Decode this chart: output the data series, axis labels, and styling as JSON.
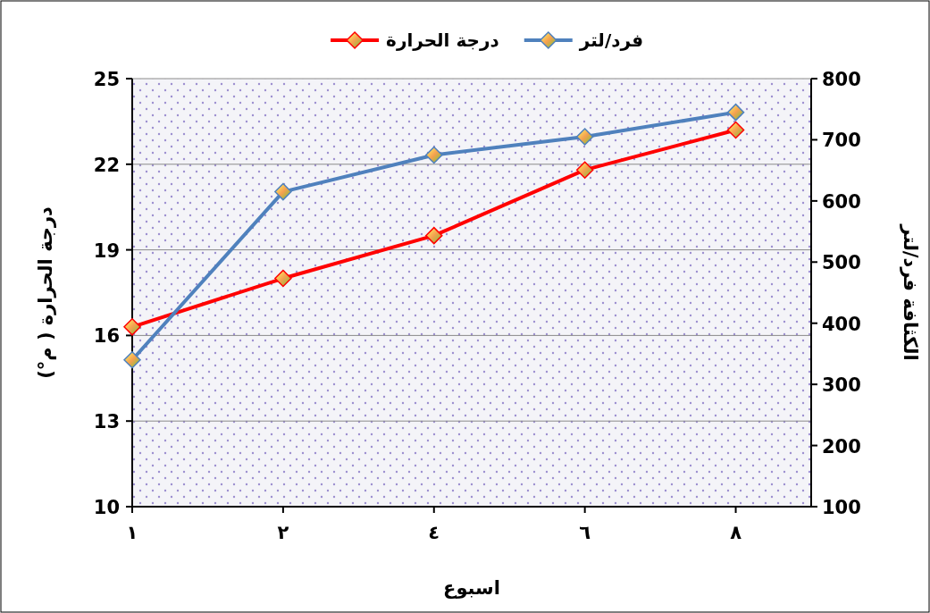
{
  "chart_data": {
    "type": "line",
    "xlabel": "اسبوع",
    "ylabel": "درجة الحرارة ( م°)",
    "y2label": "الكثافة فرد/لتر",
    "categories": [
      "١",
      "٢",
      "٤",
      "٦",
      "٨"
    ],
    "series": [
      {
        "name": "درجة الحرارة",
        "color": "#ff0000",
        "values": [
          16.3,
          18.0,
          19.5,
          21.8,
          23.2
        ]
      },
      {
        "name": "فرد/لتر",
        "color": "#4f81bd",
        "axis": "y2",
        "values": [
          340,
          615,
          675,
          705,
          745
        ]
      }
    ],
    "ylim": [
      10,
      25
    ],
    "yticks": [
      10,
      13,
      16,
      19,
      22,
      25
    ],
    "y2lim": [
      100,
      800
    ],
    "y2ticks": [
      100,
      200,
      300,
      400,
      500,
      600,
      700,
      800
    ],
    "grid": "y",
    "legend": "top",
    "marker": "diamond",
    "line_style": "solid"
  }
}
